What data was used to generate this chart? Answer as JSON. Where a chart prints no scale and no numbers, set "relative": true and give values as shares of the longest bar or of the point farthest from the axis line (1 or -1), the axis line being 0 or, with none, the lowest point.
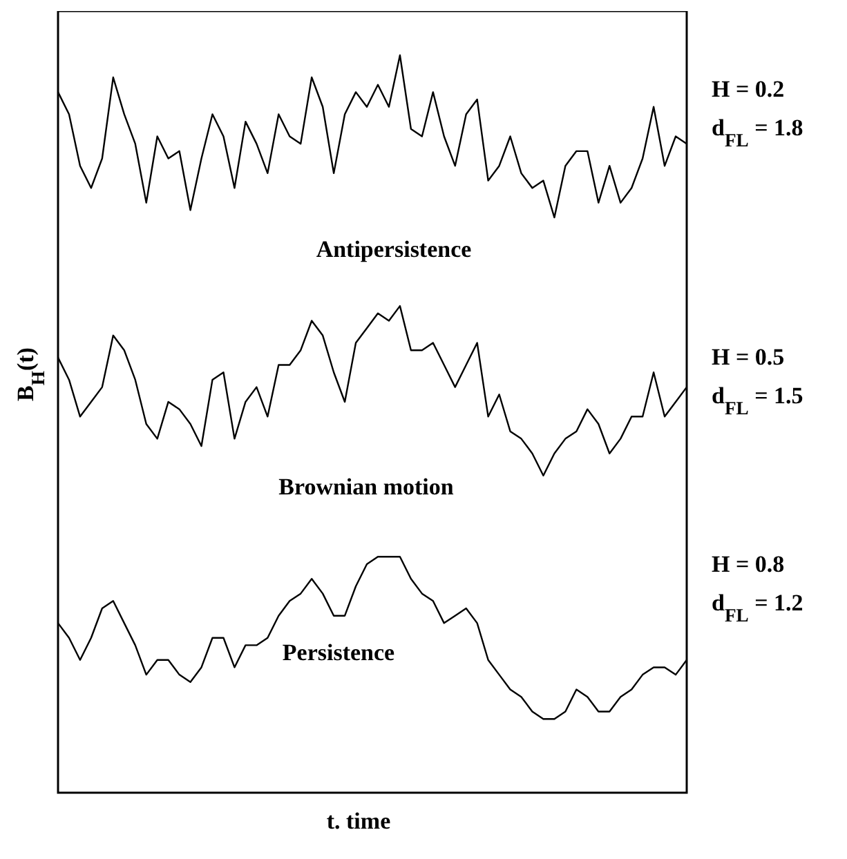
{
  "chart_data": {
    "type": "line",
    "relative": true,
    "xlabel": "t. time",
    "ylabel": "B$_{H}$(t)",
    "marker": "none",
    "line_style": "solid",
    "categories": [
      null,
      null,
      null,
      null,
      null,
      null,
      null,
      null,
      null,
      null,
      null,
      null,
      null,
      null,
      null,
      null,
      null,
      null,
      null,
      null,
      null,
      null,
      null,
      null,
      null,
      null,
      null,
      null,
      null,
      null,
      null,
      null,
      null,
      null,
      null,
      null,
      null,
      null,
      null,
      null,
      null,
      null,
      null,
      null,
      null,
      null,
      null,
      null,
      null,
      null,
      null,
      null,
      null,
      null,
      null,
      null,
      null,
      null
    ],
    "series": [
      {
        "name": "Antipersistence",
        "color": "#000000",
        "values": [
          0.95,
          0.92,
          0.85,
          0.82,
          0.86,
          0.97,
          0.92,
          0.88,
          0.8,
          0.89,
          0.86,
          0.87,
          0.79,
          0.86,
          0.92,
          0.89,
          0.82,
          0.91,
          0.88,
          0.84,
          0.92,
          0.89,
          0.88,
          0.97,
          0.93,
          0.84,
          0.92,
          0.95,
          0.93,
          0.96,
          0.93,
          1.0,
          0.9,
          0.89,
          0.95,
          0.89,
          0.85,
          0.92,
          0.94,
          0.83,
          0.85,
          0.89,
          0.84,
          0.82,
          0.83,
          0.78,
          0.85,
          0.87,
          0.87,
          0.8,
          0.85,
          0.8,
          0.82,
          0.86,
          0.93,
          0.85,
          0.89,
          0.88
        ]
      },
      {
        "name": "Brownian motion",
        "color": "#000000",
        "values": [
          0.59,
          0.56,
          0.51,
          0.53,
          0.55,
          0.62,
          0.6,
          0.56,
          0.5,
          0.48,
          0.53,
          0.52,
          0.5,
          0.47,
          0.56,
          0.57,
          0.48,
          0.53,
          0.55,
          0.51,
          0.58,
          0.58,
          0.6,
          0.64,
          0.62,
          0.57,
          0.53,
          0.61,
          0.63,
          0.65,
          0.64,
          0.66,
          0.6,
          0.6,
          0.61,
          0.58,
          0.55,
          0.58,
          0.61,
          0.51,
          0.54,
          0.49,
          0.48,
          0.46,
          0.43,
          0.46,
          0.48,
          0.49,
          0.52,
          0.5,
          0.46,
          0.48,
          0.51,
          0.51,
          0.57,
          0.51,
          0.53,
          0.55
        ]
      },
      {
        "name": "Persistence",
        "color": "#000000",
        "values": [
          0.23,
          0.21,
          0.18,
          0.21,
          0.25,
          0.26,
          0.23,
          0.2,
          0.16,
          0.18,
          0.18,
          0.16,
          0.15,
          0.17,
          0.21,
          0.21,
          0.17,
          0.2,
          0.2,
          0.21,
          0.24,
          0.26,
          0.27,
          0.29,
          0.27,
          0.24,
          0.24,
          0.28,
          0.31,
          0.32,
          0.32,
          0.32,
          0.29,
          0.27,
          0.26,
          0.23,
          0.24,
          0.25,
          0.23,
          0.18,
          0.16,
          0.14,
          0.13,
          0.11,
          0.1,
          0.1,
          0.11,
          0.14,
          0.13,
          0.11,
          0.11,
          0.13,
          0.14,
          0.16,
          0.17,
          0.17,
          0.16,
          0.18
        ]
      }
    ],
    "annotations": [
      "H = 0.2",
      "d$_{FL}$ = 1.8",
      "H = 0.5",
      "d$_{FL}$ = 1.5",
      "H = 0.8",
      "d$_{FL}$ = 1.2"
    ]
  }
}
